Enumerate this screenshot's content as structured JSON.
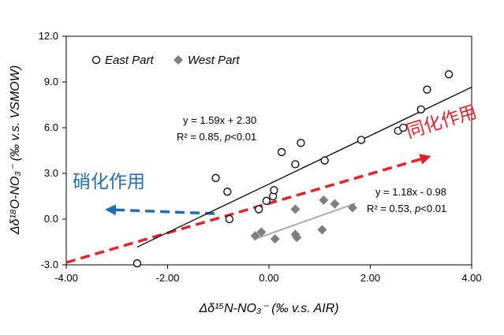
{
  "chart_data": {
    "type": "scatter",
    "title": "",
    "xlabel": "Δδ¹⁵N-NO₃⁻ (‰ v.s. AIR)",
    "ylabel": "Δδ¹⁸O-NO₃⁻ (‰ v.s. VSMOW)",
    "xlim": [
      -4.0,
      4.0
    ],
    "ylim": [
      -3.0,
      12.0
    ],
    "x_ticks": [
      "-4.00",
      "-2.00",
      "0.00",
      "2.00",
      "4.00"
    ],
    "y_ticks": [
      "-3.0",
      "0.0",
      "3.0",
      "6.0",
      "9.0",
      "12.0"
    ],
    "x_tick_values": [
      -4,
      -2,
      0,
      2,
      4
    ],
    "y_tick_values": [
      -3,
      0,
      3,
      6,
      9,
      12
    ],
    "grid": false,
    "legend_position": "top-left",
    "series": [
      {
        "name": "East Part",
        "marker": "open-circle",
        "color": "#000000",
        "points": [
          [
            -2.6,
            -2.9
          ],
          [
            -1.05,
            2.7
          ],
          [
            -0.82,
            1.8
          ],
          [
            -0.78,
            0.0
          ],
          [
            -0.2,
            0.65
          ],
          [
            -0.05,
            1.2
          ],
          [
            0.08,
            1.5
          ],
          [
            0.1,
            1.9
          ],
          [
            0.25,
            4.4
          ],
          [
            0.52,
            3.6
          ],
          [
            0.63,
            5.0
          ],
          [
            1.1,
            3.85
          ],
          [
            1.82,
            5.2
          ],
          [
            2.55,
            5.8
          ],
          [
            2.65,
            6.0
          ],
          [
            3.0,
            7.2
          ],
          [
            3.12,
            8.5
          ],
          [
            3.55,
            9.5
          ]
        ]
      },
      {
        "name": "West Part",
        "marker": "filled-diamond",
        "color": "#7f7f7f",
        "points": [
          [
            -0.27,
            -1.1
          ],
          [
            -0.15,
            -0.85
          ],
          [
            0.12,
            -1.3
          ],
          [
            0.52,
            0.65
          ],
          [
            0.52,
            -1.0
          ],
          [
            0.55,
            -1.2
          ],
          [
            1.05,
            -0.7
          ],
          [
            1.08,
            1.25
          ],
          [
            1.3,
            1.0
          ],
          [
            1.65,
            0.75
          ]
        ]
      }
    ],
    "trendlines": [
      {
        "series": "East Part",
        "slope": 1.59,
        "intercept": 2.3,
        "x_range": [
          -2.6,
          4.0
        ],
        "color": "#000000",
        "equation": "y = 1.59x + 2.30",
        "r2_label": "R² = 0.85, ",
        "p_label": "p",
        "p_rest": "<0.01"
      },
      {
        "series": "West Part",
        "slope": 1.18,
        "intercept": -0.98,
        "x_range": [
          -0.3,
          1.7
        ],
        "color": "#a6a6a6",
        "equation": "y = 1.18x - 0.98",
        "r2_label": "R² = 0.53, ",
        "p_label": "p",
        "p_rest": "<0.01"
      }
    ],
    "annotations": [
      {
        "text": "硝化作用",
        "color": "#1f6fb4",
        "arrow": "dashed-left"
      },
      {
        "text": "同化作用",
        "color": "#e8202a",
        "arrow": "dashed-up-right"
      }
    ]
  }
}
